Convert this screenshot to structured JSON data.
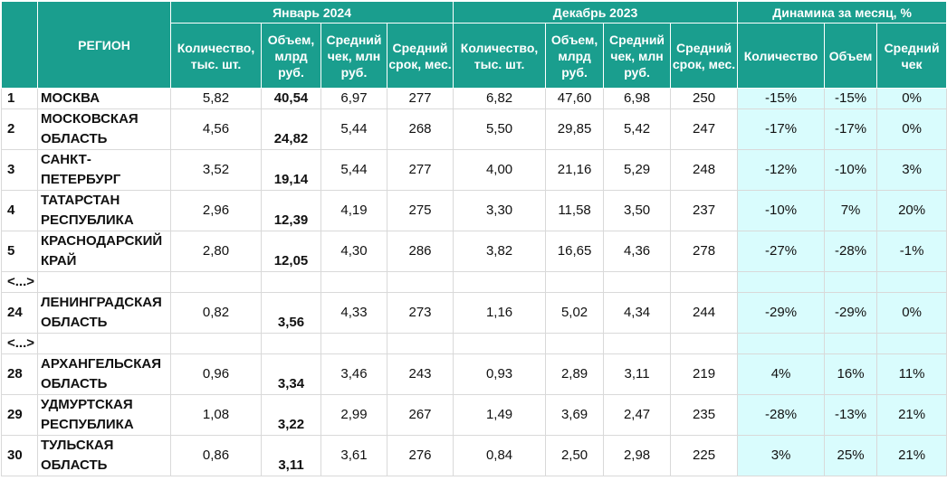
{
  "header": {
    "region": "РЕГИОН",
    "groups": [
      "Январь 2024",
      "Декабрь 2023",
      "Динамика за месяц, %"
    ],
    "jan": [
      "Количество, тыс. шт.",
      "Объем, млрд руб.",
      "Средний чек, млн руб.",
      "Средний срок, мес."
    ],
    "dec": [
      "Количество, тыс. шт.",
      "Объем, млрд руб.",
      "Средний чек, млн руб.",
      "Средний срок, мес."
    ],
    "dyn": [
      "Количество",
      "Объем",
      "Средний чек"
    ]
  },
  "rows": [
    {
      "idx": "1",
      "name": "МОСКВА",
      "jan": [
        "5,82",
        "40,54",
        "6,97",
        "277"
      ],
      "dec": [
        "6,82",
        "47,60",
        "6,98",
        "250"
      ],
      "dyn": [
        "-15%",
        "-15%",
        "0%"
      ]
    },
    {
      "idx": "2",
      "name": "МОСКОВСКАЯ ОБЛАСТЬ",
      "jan": [
        "4,56",
        "24,82",
        "5,44",
        "268"
      ],
      "dec": [
        "5,50",
        "29,85",
        "5,42",
        "247"
      ],
      "dyn": [
        "-17%",
        "-17%",
        "0%"
      ]
    },
    {
      "idx": "3",
      "name": "САНКТ-ПЕТЕРБУРГ",
      "jan": [
        "3,52",
        "19,14",
        "5,44",
        "277"
      ],
      "dec": [
        "4,00",
        "21,16",
        "5,29",
        "248"
      ],
      "dyn": [
        "-12%",
        "-10%",
        "3%"
      ]
    },
    {
      "idx": "4",
      "name": "ТАТАРСТАН РЕСПУБЛИКА",
      "jan": [
        "2,96",
        "12,39",
        "4,19",
        "275"
      ],
      "dec": [
        "3,30",
        "11,58",
        "3,50",
        "237"
      ],
      "dyn": [
        "-10%",
        "7%",
        "20%"
      ]
    },
    {
      "idx": "5",
      "name": "КРАСНОДАРСКИЙ КРАЙ",
      "jan": [
        "2,80",
        "12,05",
        "4,30",
        "286"
      ],
      "dec": [
        "3,82",
        "16,65",
        "4,36",
        "278"
      ],
      "dyn": [
        "-27%",
        "-28%",
        "-1%"
      ]
    },
    {
      "gap": "<...>"
    },
    {
      "idx": "24",
      "name": "ЛЕНИНГРАДСКАЯ ОБЛАСТЬ",
      "jan": [
        "0,82",
        "3,56",
        "4,33",
        "273"
      ],
      "dec": [
        "1,16",
        "5,02",
        "4,34",
        "244"
      ],
      "dyn": [
        "-29%",
        "-29%",
        "0%"
      ]
    },
    {
      "gap": "<...>"
    },
    {
      "idx": "28",
      "name": "АРХАНГЕЛЬСКАЯ ОБЛАСТЬ",
      "jan": [
        "0,96",
        "3,34",
        "3,46",
        "243"
      ],
      "dec": [
        "0,93",
        "2,89",
        "3,11",
        "219"
      ],
      "dyn": [
        "4%",
        "16%",
        "11%"
      ]
    },
    {
      "idx": "29",
      "name": "УДМУРТСКАЯ РЕСПУБЛИКА",
      "jan": [
        "1,08",
        "3,22",
        "2,99",
        "267"
      ],
      "dec": [
        "1,49",
        "3,69",
        "2,47",
        "235"
      ],
      "dyn": [
        "-28%",
        "-13%",
        "21%"
      ]
    },
    {
      "idx": "30",
      "name": "ТУЛЬСКАЯ ОБЛАСТЬ",
      "jan": [
        "0,86",
        "3,11",
        "3,61",
        "276"
      ],
      "dec": [
        "0,84",
        "2,50",
        "2,98",
        "225"
      ],
      "dyn": [
        "3%",
        "25%",
        "21%"
      ]
    }
  ]
}
